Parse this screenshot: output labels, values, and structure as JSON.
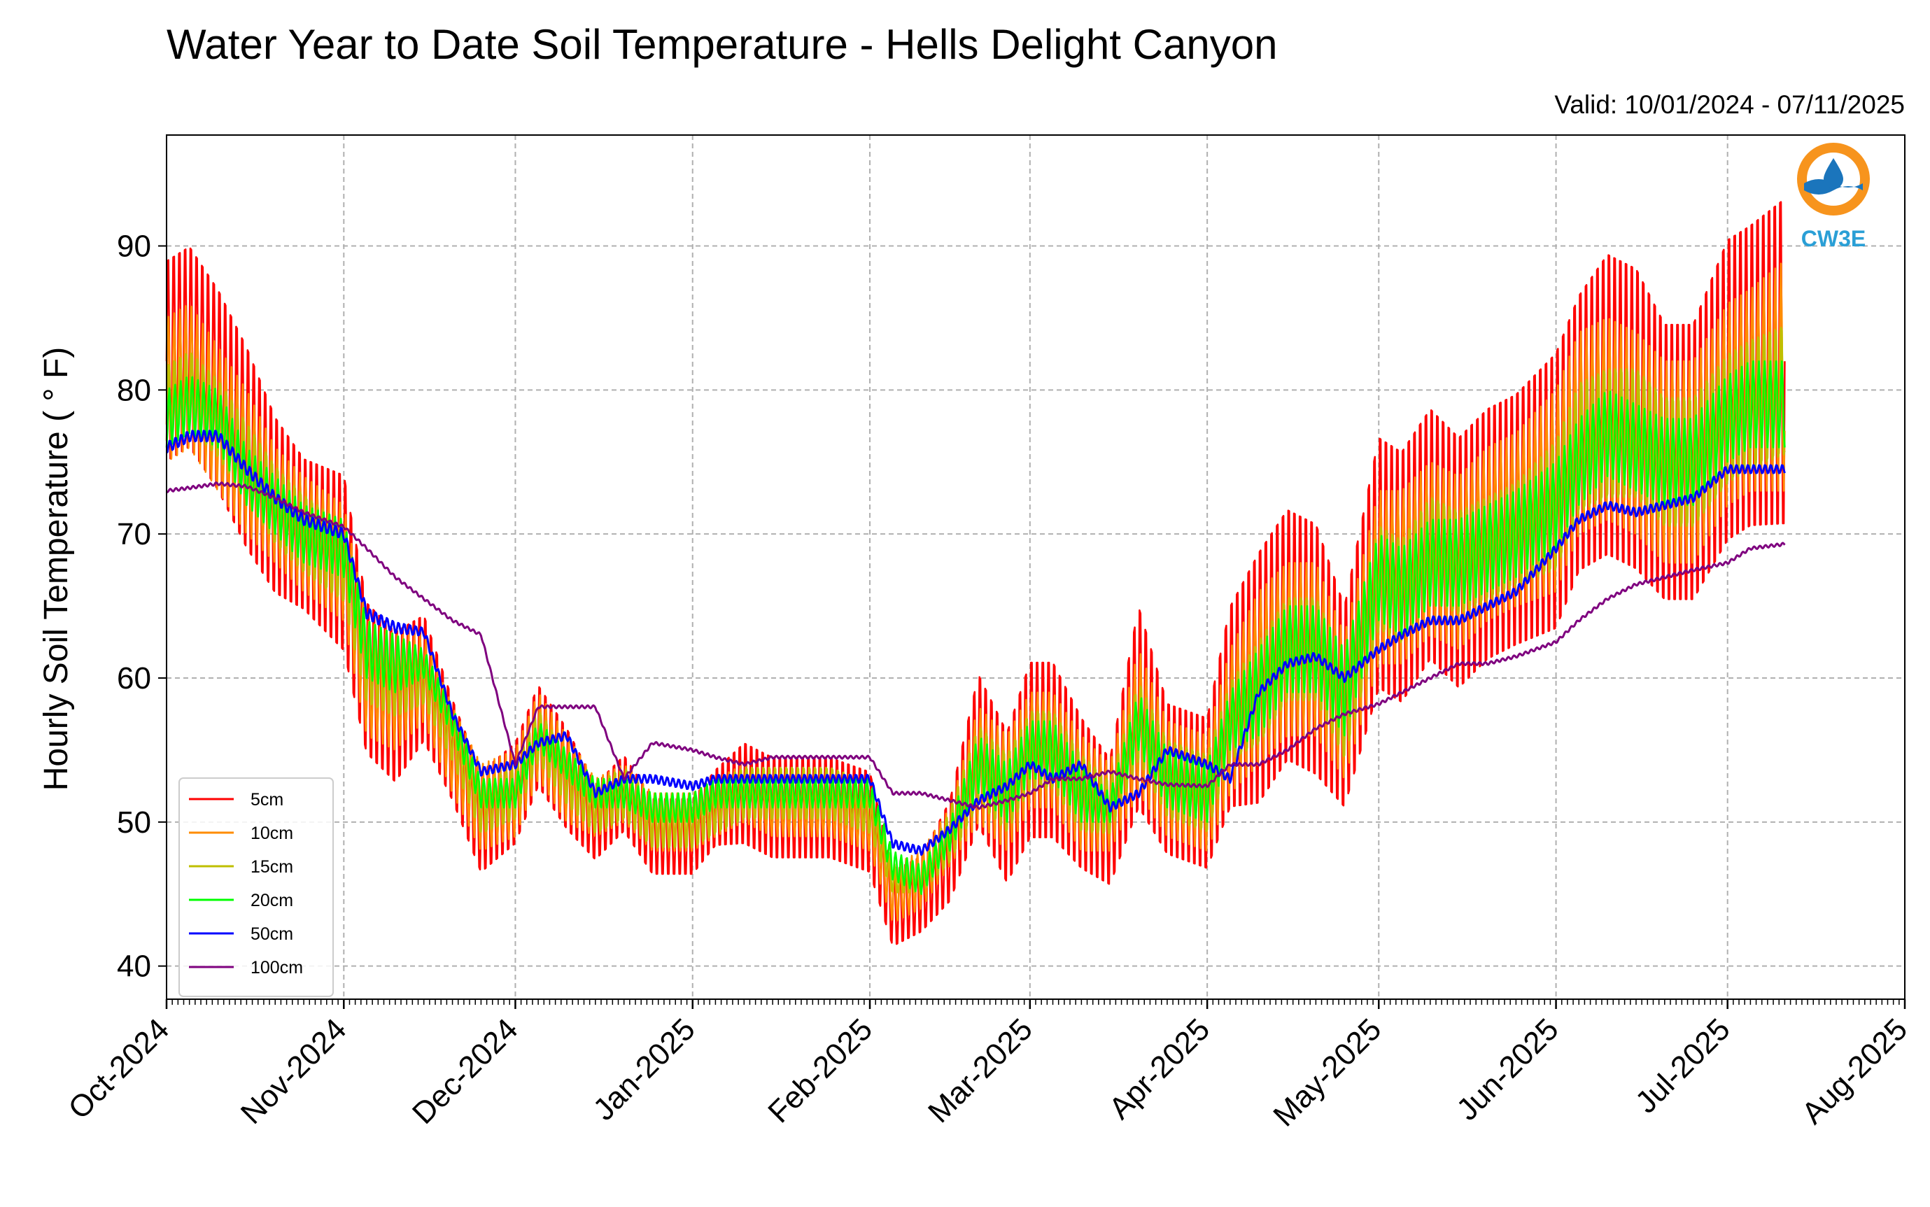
{
  "chart_data": {
    "type": "line",
    "title": "Water Year to Date Soil Temperature - Hells Delight Canyon",
    "subtitle": "Valid: 10/01/2024 - 07/11/2025",
    "ylabel": "Hourly Soil Temperature ( ° F)",
    "xlabel": "",
    "xlim": [
      "2024-10-01",
      "2025-08-01"
    ],
    "ylim": [
      37.7,
      97.7
    ],
    "yticks": [
      40,
      50,
      60,
      70,
      80,
      90
    ],
    "xtick_labels": [
      "Oct-2024",
      "Nov-2024",
      "Dec-2024",
      "Jan-2025",
      "Feb-2025",
      "Mar-2025",
      "Apr-2025",
      "May-2025",
      "Jun-2025",
      "Jul-2025",
      "Aug-2025"
    ],
    "xtick_dates": [
      "2024-10-01",
      "2024-11-01",
      "2024-12-01",
      "2025-01-01",
      "2025-02-01",
      "2025-03-01",
      "2025-04-01",
      "2025-05-01",
      "2025-06-01",
      "2025-07-01",
      "2025-08-01"
    ],
    "grid": true,
    "legend_position": "lower-left",
    "series": [
      {
        "name": "5cm",
        "color": "#ff0000",
        "x": [
          "2024-10-01",
          "2024-10-05",
          "2024-10-10",
          "2024-10-15",
          "2024-10-20",
          "2024-10-25",
          "2024-11-01",
          "2024-11-05",
          "2024-11-10",
          "2024-11-15",
          "2024-11-20",
          "2024-11-25",
          "2024-12-01",
          "2024-12-05",
          "2024-12-10",
          "2024-12-15",
          "2024-12-20",
          "2024-12-25",
          "2025-01-01",
          "2025-01-05",
          "2025-01-10",
          "2025-01-15",
          "2025-01-20",
          "2025-01-25",
          "2025-02-01",
          "2025-02-05",
          "2025-02-10",
          "2025-02-15",
          "2025-02-20",
          "2025-02-25",
          "2025-03-01",
          "2025-03-05",
          "2025-03-10",
          "2025-03-15",
          "2025-03-20",
          "2025-03-25",
          "2025-04-01",
          "2025-04-05",
          "2025-04-10",
          "2025-04-15",
          "2025-04-20",
          "2025-04-25",
          "2025-05-01",
          "2025-05-05",
          "2025-05-10",
          "2025-05-15",
          "2025-05-20",
          "2025-05-25",
          "2025-06-01",
          "2025-06-05",
          "2025-06-10",
          "2025-06-15",
          "2025-06-20",
          "2025-06-25",
          "2025-07-01",
          "2025-07-05",
          "2025-07-11"
        ],
        "values": [
          82,
          83,
          80,
          76,
          72,
          70,
          68,
          60,
          58,
          60,
          55,
          50,
          52,
          56,
          53,
          50,
          52,
          49,
          49,
          51,
          52,
          51,
          51,
          51,
          50,
          44,
          45,
          48,
          55,
          51,
          55,
          55,
          52,
          50,
          58,
          53,
          52,
          58,
          60,
          63,
          62,
          58,
          68,
          67,
          70,
          68,
          70,
          71,
          73,
          77,
          79,
          78,
          75,
          75,
          80,
          81,
          82
        ],
        "amplitude": [
          8,
          8,
          8,
          8,
          7,
          6,
          7,
          6,
          6,
          5,
          4,
          4,
          4,
          4,
          4,
          3,
          3,
          3,
          3,
          3,
          4,
          4,
          4,
          4,
          4,
          3,
          3,
          4,
          6,
          6,
          7,
          7,
          6,
          5,
          8,
          6,
          6,
          8,
          10,
          10,
          10,
          8,
          10,
          10,
          10,
          10,
          10,
          10,
          11,
          11,
          12,
          12,
          11,
          11,
          12,
          12,
          13
        ]
      },
      {
        "name": "10cm",
        "color": "#ff8c00",
        "x": [
          "2024-10-01",
          "2024-10-05",
          "2024-10-10",
          "2024-10-15",
          "2024-10-20",
          "2024-10-25",
          "2024-11-01",
          "2024-11-05",
          "2024-11-10",
          "2024-11-15",
          "2024-11-20",
          "2024-11-25",
          "2024-12-01",
          "2024-12-05",
          "2024-12-10",
          "2024-12-15",
          "2024-12-20",
          "2024-12-25",
          "2025-01-01",
          "2025-01-05",
          "2025-01-10",
          "2025-01-15",
          "2025-01-20",
          "2025-01-25",
          "2025-02-01",
          "2025-02-05",
          "2025-02-10",
          "2025-02-15",
          "2025-02-20",
          "2025-02-25",
          "2025-03-01",
          "2025-03-05",
          "2025-03-10",
          "2025-03-15",
          "2025-03-20",
          "2025-03-25",
          "2025-04-01",
          "2025-04-05",
          "2025-04-10",
          "2025-04-15",
          "2025-04-20",
          "2025-04-25",
          "2025-05-01",
          "2025-05-05",
          "2025-05-10",
          "2025-05-15",
          "2025-05-20",
          "2025-05-25",
          "2025-06-01",
          "2025-06-05",
          "2025-06-10",
          "2025-06-15",
          "2025-06-20",
          "2025-06-25",
          "2025-07-01",
          "2025-07-05",
          "2025-07-11"
        ],
        "values": [
          80,
          81,
          78,
          75,
          72,
          70,
          68,
          60,
          59,
          60,
          55,
          51,
          52,
          56,
          53,
          51,
          52,
          50,
          50,
          51,
          52,
          51,
          51,
          51,
          50,
          45,
          46,
          49,
          54,
          52,
          55,
          55,
          52,
          51,
          57,
          53,
          52,
          57,
          60,
          62,
          62,
          58,
          67,
          67,
          69,
          68,
          70,
          71,
          73,
          77,
          78,
          77,
          75,
          75,
          79,
          80,
          81
        ],
        "amplitude": [
          5,
          5,
          5,
          5,
          4,
          4,
          4,
          4,
          4,
          3,
          3,
          3,
          3,
          3,
          3,
          2,
          2,
          2,
          2,
          2,
          2,
          2,
          2,
          2,
          2,
          2,
          2,
          2,
          4,
          4,
          4,
          4,
          4,
          3,
          5,
          4,
          4,
          5,
          6,
          6,
          6,
          5,
          6,
          6,
          6,
          6,
          6,
          6,
          7,
          7,
          7,
          7,
          7,
          7,
          7,
          7,
          8
        ]
      },
      {
        "name": "15cm",
        "color": "#bfbf00",
        "x": [
          "2024-10-01",
          "2024-10-05",
          "2024-10-10",
          "2024-10-15",
          "2024-10-20",
          "2024-10-25",
          "2024-11-01",
          "2024-11-05",
          "2024-11-10",
          "2024-11-15",
          "2024-11-20",
          "2024-11-25",
          "2024-12-01",
          "2024-12-05",
          "2024-12-10",
          "2024-12-15",
          "2024-12-20",
          "2024-12-25",
          "2025-01-01",
          "2025-01-05",
          "2025-01-10",
          "2025-01-15",
          "2025-01-20",
          "2025-01-25",
          "2025-02-01",
          "2025-02-05",
          "2025-02-10",
          "2025-02-15",
          "2025-02-20",
          "2025-02-25",
          "2025-03-01",
          "2025-03-05",
          "2025-03-10",
          "2025-03-15",
          "2025-03-20",
          "2025-03-25",
          "2025-04-01",
          "2025-04-05",
          "2025-04-10",
          "2025-04-15",
          "2025-04-20",
          "2025-04-25",
          "2025-05-01",
          "2025-05-05",
          "2025-05-10",
          "2025-05-15",
          "2025-05-20",
          "2025-05-25",
          "2025-06-01",
          "2025-06-05",
          "2025-06-10",
          "2025-06-15",
          "2025-06-20",
          "2025-06-25",
          "2025-07-01",
          "2025-07-05",
          "2025-07-11"
        ],
        "values": [
          79,
          80,
          78,
          75,
          72,
          70,
          68,
          61,
          60,
          60,
          56,
          51,
          52,
          56,
          53,
          51,
          52,
          50,
          50,
          51,
          52,
          52,
          52,
          52,
          51,
          46,
          46,
          49,
          54,
          52,
          55,
          55,
          52,
          51,
          57,
          53,
          52,
          57,
          59,
          62,
          62,
          58,
          67,
          66,
          69,
          68,
          69,
          70,
          72,
          76,
          77,
          77,
          75,
          75,
          78,
          79,
          80
        ],
        "amplitude": [
          3,
          3,
          3,
          3,
          3,
          3,
          3,
          3,
          3,
          2,
          2,
          2,
          2,
          2,
          2,
          2,
          2,
          2,
          2,
          2,
          2,
          2,
          2,
          2,
          2,
          1,
          1,
          2,
          3,
          3,
          3,
          3,
          3,
          2,
          3,
          3,
          3,
          3,
          4,
          4,
          4,
          4,
          4,
          4,
          4,
          4,
          4,
          4,
          5,
          5,
          5,
          5,
          5,
          5,
          5,
          5,
          5
        ]
      },
      {
        "name": "20cm",
        "color": "#00ff00",
        "x": [
          "2024-10-01",
          "2024-10-05",
          "2024-10-10",
          "2024-10-15",
          "2024-10-20",
          "2024-10-25",
          "2024-11-01",
          "2024-11-05",
          "2024-11-10",
          "2024-11-15",
          "2024-11-20",
          "2024-11-25",
          "2024-12-01",
          "2024-12-05",
          "2024-12-10",
          "2024-12-15",
          "2024-12-20",
          "2024-12-25",
          "2025-01-01",
          "2025-01-05",
          "2025-01-10",
          "2025-01-15",
          "2025-01-20",
          "2025-01-25",
          "2025-02-01",
          "2025-02-05",
          "2025-02-10",
          "2025-02-15",
          "2025-02-20",
          "2025-02-25",
          "2025-03-01",
          "2025-03-05",
          "2025-03-10",
          "2025-03-15",
          "2025-03-20",
          "2025-03-25",
          "2025-04-01",
          "2025-04-05",
          "2025-04-10",
          "2025-04-15",
          "2025-04-20",
          "2025-04-25",
          "2025-05-01",
          "2025-05-05",
          "2025-05-10",
          "2025-05-15",
          "2025-05-20",
          "2025-05-25",
          "2025-06-01",
          "2025-06-05",
          "2025-06-10",
          "2025-06-15",
          "2025-06-20",
          "2025-06-25",
          "2025-07-01",
          "2025-07-05",
          "2025-07-11"
        ],
        "values": [
          78,
          79,
          78,
          74,
          72,
          70,
          69,
          62,
          61,
          61,
          57,
          52,
          52,
          56,
          54,
          52,
          52,
          51,
          51,
          52,
          52,
          52,
          52,
          52,
          52,
          47,
          46,
          49,
          54,
          52,
          55,
          55,
          52,
          51,
          57,
          53,
          52,
          57,
          59,
          62,
          62,
          59,
          67,
          66,
          68,
          68,
          69,
          70,
          72,
          75,
          77,
          76,
          75,
          75,
          78,
          79,
          79
        ],
        "amplitude": [
          2,
          2,
          2,
          2,
          2,
          2,
          2,
          2,
          2,
          1,
          1,
          1,
          1,
          1,
          1,
          1,
          1,
          1,
          1,
          1,
          1,
          1,
          1,
          1,
          1,
          1,
          1,
          1,
          2,
          2,
          2,
          2,
          2,
          1,
          2,
          2,
          2,
          2,
          3,
          3,
          3,
          3,
          3,
          3,
          3,
          3,
          3,
          3,
          3,
          3,
          3,
          3,
          3,
          3,
          3,
          3,
          3
        ]
      },
      {
        "name": "50cm",
        "color": "#0000ff",
        "x": [
          "2024-10-01",
          "2024-10-05",
          "2024-10-10",
          "2024-10-15",
          "2024-10-20",
          "2024-10-25",
          "2024-11-01",
          "2024-11-05",
          "2024-11-10",
          "2024-11-15",
          "2024-11-20",
          "2024-11-25",
          "2024-12-01",
          "2024-12-05",
          "2024-12-10",
          "2024-12-15",
          "2024-12-20",
          "2024-12-25",
          "2025-01-01",
          "2025-01-05",
          "2025-01-10",
          "2025-01-15",
          "2025-01-20",
          "2025-01-25",
          "2025-02-01",
          "2025-02-05",
          "2025-02-10",
          "2025-02-15",
          "2025-02-20",
          "2025-02-25",
          "2025-03-01",
          "2025-03-05",
          "2025-03-10",
          "2025-03-15",
          "2025-03-20",
          "2025-03-25",
          "2025-04-01",
          "2025-04-05",
          "2025-04-10",
          "2025-04-15",
          "2025-04-20",
          "2025-04-25",
          "2025-05-01",
          "2025-05-05",
          "2025-05-10",
          "2025-05-15",
          "2025-05-20",
          "2025-05-25",
          "2025-06-01",
          "2025-06-05",
          "2025-06-10",
          "2025-06-15",
          "2025-06-20",
          "2025-06-25",
          "2025-07-01",
          "2025-07-05",
          "2025-07-11"
        ],
        "values": [
          76,
          76.8,
          76.8,
          74.5,
          72.5,
          71,
          70,
          64.5,
          63.5,
          63.2,
          57.5,
          53.5,
          54,
          55.5,
          56,
          52,
          53,
          53,
          52.5,
          53,
          53,
          53,
          53,
          53,
          53,
          48.5,
          48,
          49.5,
          51.5,
          52.5,
          54,
          53,
          54,
          51,
          52,
          55,
          54,
          53,
          59,
          61,
          61.5,
          60,
          62,
          63,
          64,
          64,
          65,
          66,
          69,
          71,
          72,
          71.5,
          72,
          72.5,
          74.5,
          74.5,
          74.5
        ],
        "amplitude": [
          0.4,
          0.4,
          0.4,
          0.4,
          0.4,
          0.4,
          0.4,
          0.4,
          0.4,
          0.3,
          0.3,
          0.3,
          0.3,
          0.3,
          0.3,
          0.3,
          0.3,
          0.3,
          0.3,
          0.3,
          0.3,
          0.3,
          0.3,
          0.3,
          0.3,
          0.3,
          0.3,
          0.3,
          0.3,
          0.3,
          0.3,
          0.3,
          0.3,
          0.3,
          0.3,
          0.3,
          0.3,
          0.3,
          0.3,
          0.3,
          0.3,
          0.3,
          0.3,
          0.3,
          0.3,
          0.3,
          0.3,
          0.3,
          0.3,
          0.3,
          0.3,
          0.3,
          0.3,
          0.3,
          0.3,
          0.3,
          0.3
        ]
      },
      {
        "name": "100cm",
        "color": "#7f007f",
        "x": [
          "2024-10-01",
          "2024-10-05",
          "2024-10-10",
          "2024-10-15",
          "2024-10-20",
          "2024-10-25",
          "2024-11-01",
          "2024-11-05",
          "2024-11-10",
          "2024-11-15",
          "2024-11-20",
          "2024-11-25",
          "2024-12-01",
          "2024-12-05",
          "2024-12-10",
          "2024-12-15",
          "2024-12-20",
          "2024-12-25",
          "2025-01-01",
          "2025-01-05",
          "2025-01-10",
          "2025-01-15",
          "2025-01-20",
          "2025-01-25",
          "2025-02-01",
          "2025-02-05",
          "2025-02-10",
          "2025-02-15",
          "2025-02-20",
          "2025-02-25",
          "2025-03-01",
          "2025-03-05",
          "2025-03-10",
          "2025-03-15",
          "2025-03-20",
          "2025-03-25",
          "2025-04-01",
          "2025-04-05",
          "2025-04-10",
          "2025-04-15",
          "2025-04-20",
          "2025-04-25",
          "2025-05-01",
          "2025-05-05",
          "2025-05-10",
          "2025-05-15",
          "2025-05-20",
          "2025-05-25",
          "2025-06-01",
          "2025-06-05",
          "2025-06-10",
          "2025-06-15",
          "2025-06-20",
          "2025-06-25",
          "2025-07-01",
          "2025-07-05",
          "2025-07-11"
        ],
        "values": [
          73,
          73.2,
          73.5,
          73.3,
          72.5,
          71.5,
          70.5,
          69,
          67,
          65.5,
          64,
          63,
          54,
          58,
          58,
          58,
          53,
          55.5,
          55,
          54.5,
          54,
          54.5,
          54.5,
          54.5,
          54.5,
          52,
          52,
          51.5,
          51,
          51.5,
          52,
          53,
          53,
          53.5,
          53,
          52.6,
          52.5,
          54,
          54,
          55,
          56.5,
          57.5,
          58.2,
          59,
          60,
          61,
          61,
          61.5,
          62.5,
          64,
          65.5,
          66.5,
          67,
          67.5,
          68,
          69,
          69.3
        ],
        "amplitude": [
          0.1,
          0.1,
          0.1,
          0.1,
          0.1,
          0.1,
          0.1,
          0.1,
          0.1,
          0.1,
          0.1,
          0.1,
          0.1,
          0.1,
          0.1,
          0.1,
          0.1,
          0.1,
          0.1,
          0.1,
          0.1,
          0.1,
          0.1,
          0.1,
          0.1,
          0.1,
          0.1,
          0.1,
          0.1,
          0.1,
          0.1,
          0.1,
          0.1,
          0.1,
          0.1,
          0.1,
          0.1,
          0.1,
          0.1,
          0.1,
          0.1,
          0.1,
          0.1,
          0.1,
          0.1,
          0.1,
          0.1,
          0.1,
          0.1,
          0.1,
          0.1,
          0.1,
          0.1,
          0.1,
          0.1,
          0.1,
          0.1
        ]
      }
    ]
  },
  "logo": {
    "text": "CW3E",
    "ring_color": "#f7941d",
    "wave_color": "#1b75bc",
    "text_color": "#2a9fd6"
  }
}
